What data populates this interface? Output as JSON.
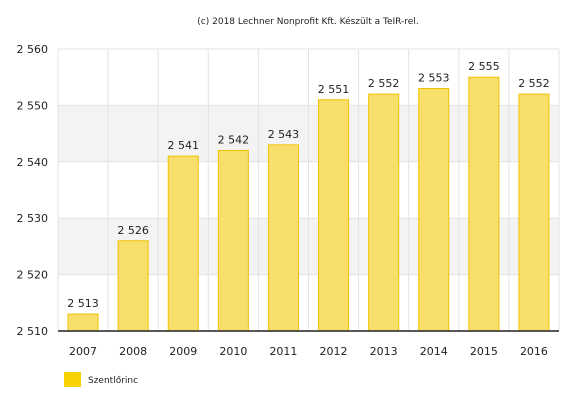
{
  "credit": "(c) 2018 Lechner Nonprofit Kft. Készült a TeIR-rel.",
  "colors": {
    "bar_fill": "#f8df6c",
    "bar_stroke": "#f2c200",
    "legend_swatch": "#f8d200",
    "band": "#f3f3f3",
    "grid": "#e3e3e3",
    "axis": "#222222"
  },
  "chart_data": {
    "type": "bar",
    "categories": [
      "2007",
      "2008",
      "2009",
      "2010",
      "2011",
      "2012",
      "2013",
      "2014",
      "2015",
      "2016"
    ],
    "series": [
      {
        "name": "Szentlőrinc",
        "values": [
          2513,
          2526,
          2541,
          2542,
          2543,
          2551,
          2552,
          2553,
          2555,
          2552
        ]
      }
    ],
    "value_labels": [
      "2 513",
      "2 526",
      "2 541",
      "2 542",
      "2 543",
      "2 551",
      "2 552",
      "2 553",
      "2 555",
      "2 552"
    ],
    "ylim": [
      2510,
      2560
    ],
    "yticks": [
      2510,
      2520,
      2530,
      2540,
      2550,
      2560
    ],
    "ytick_labels": [
      "2 510",
      "2 520",
      "2 530",
      "2 540",
      "2 550",
      "2 560"
    ],
    "grid": true,
    "legend_position": "bottom-left",
    "xlabel": "",
    "ylabel": ""
  }
}
